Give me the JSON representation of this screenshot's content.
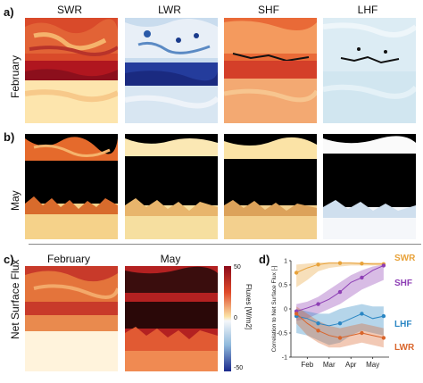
{
  "panels": {
    "a_label": "a)",
    "b_label": "b)",
    "c_label": "c)",
    "d_label": "d)"
  },
  "columns": [
    "SWR",
    "LWR",
    "SHF",
    "LHF"
  ],
  "rows": {
    "a": "February",
    "b": "May",
    "c": "Net Surface Flux"
  },
  "panel_c": {
    "col1": "February",
    "col2": "May",
    "colorbar": {
      "label": "Fluxes [W/m2]",
      "ticks": [
        "50",
        "0",
        "-50"
      ]
    }
  },
  "colors": {
    "swr": "#e8a23a",
    "shf": "#8e3fb5",
    "lhf": "#2a86c4",
    "lwr": "#d9652b"
  },
  "chart_data": {
    "type": "line",
    "ylabel": "Correlation to Net Surface Flux [-]",
    "ylim": [
      -1,
      1
    ],
    "yticks": [
      "1",
      "0.5",
      "0",
      "-0.5",
      "-1"
    ],
    "xticks": [
      "Feb",
      "Mar",
      "Apr",
      "May"
    ],
    "x": [
      1,
      2,
      3,
      4,
      5,
      6,
      7,
      8,
      9
    ],
    "series": [
      {
        "name": "SWR",
        "values": [
          0.75,
          0.85,
          0.92,
          0.95,
          0.95,
          0.95,
          0.94,
          0.93,
          0.93
        ],
        "band_low": [
          0.45,
          0.6,
          0.78,
          0.85,
          0.88,
          0.9,
          0.9,
          0.9,
          0.9
        ],
        "band_high": [
          0.92,
          0.94,
          0.96,
          0.97,
          0.97,
          0.97,
          0.96,
          0.96,
          0.96
        ]
      },
      {
        "name": "SHF",
        "values": [
          -0.05,
          0.02,
          0.1,
          0.2,
          0.35,
          0.55,
          0.65,
          0.8,
          0.9
        ],
        "band_low": [
          -0.25,
          -0.2,
          -0.1,
          0.0,
          0.1,
          0.25,
          0.4,
          0.5,
          0.6
        ],
        "band_high": [
          0.1,
          0.15,
          0.25,
          0.4,
          0.55,
          0.7,
          0.8,
          0.88,
          0.92
        ]
      },
      {
        "name": "LHF",
        "values": [
          -0.15,
          -0.2,
          -0.3,
          -0.35,
          -0.3,
          -0.2,
          -0.1,
          -0.2,
          -0.15
        ],
        "band_low": [
          -0.5,
          -0.55,
          -0.65,
          -0.75,
          -0.7,
          -0.55,
          -0.45,
          -0.5,
          -0.55
        ],
        "band_high": [
          0.0,
          -0.05,
          -0.1,
          -0.1,
          0.0,
          0.05,
          0.1,
          0.05,
          0.05
        ]
      },
      {
        "name": "LWR",
        "values": [
          -0.1,
          -0.3,
          -0.45,
          -0.55,
          -0.6,
          -0.55,
          -0.5,
          -0.55,
          -0.6
        ],
        "band_low": [
          -0.3,
          -0.55,
          -0.7,
          -0.8,
          -0.8,
          -0.75,
          -0.7,
          -0.75,
          -0.8
        ],
        "band_high": [
          0.05,
          -0.1,
          -0.25,
          -0.35,
          -0.4,
          -0.35,
          -0.3,
          -0.35,
          -0.4
        ]
      }
    ]
  }
}
